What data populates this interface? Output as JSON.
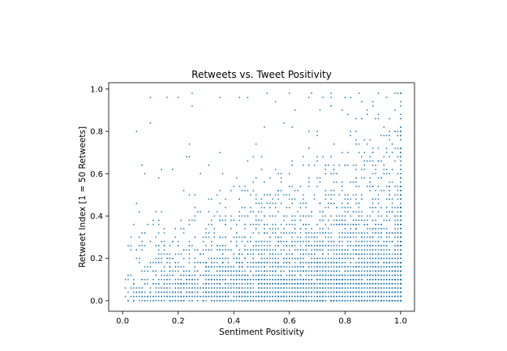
{
  "chart_data": {
    "type": "scatter",
    "title": "Retweets vs. Tweet Positivity",
    "xlabel": "Sentiment Positivity",
    "ylabel": "Retweet Index [1 = 50 Retweets]",
    "xlim": [
      -0.05,
      1.05
    ],
    "ylim": [
      -0.05,
      1.03
    ],
    "xticks": [
      "0.0",
      "0.2",
      "0.4",
      "0.6",
      "0.8",
      "1.0"
    ],
    "yticks": [
      "0.0",
      "0.2",
      "0.4",
      "0.6",
      "0.8",
      "1.0"
    ],
    "grid": false,
    "legend": "none",
    "marker_color": "#1f77b4",
    "y_step": 0.02,
    "density_note_points": {
      "x": [
        0.02,
        0.05,
        0.08,
        0.1,
        0.1,
        0.16,
        0.2,
        0.25,
        0.25,
        0.42,
        0.45,
        0.52,
        0.55,
        0.6,
        0.68,
        0.72,
        0.75,
        0.8,
        0.85,
        0.9,
        0.95,
        0.98,
        1.0
      ],
      "y": [
        0.26,
        0.8,
        0.6,
        0.96,
        0.84,
        0.96,
        0.96,
        0.98,
        0.92,
        0.96,
        0.96,
        0.98,
        0.94,
        0.98,
        0.98,
        0.96,
        0.92,
        0.96,
        0.98,
        0.94,
        0.96,
        0.98,
        0.98
      ]
    }
  }
}
